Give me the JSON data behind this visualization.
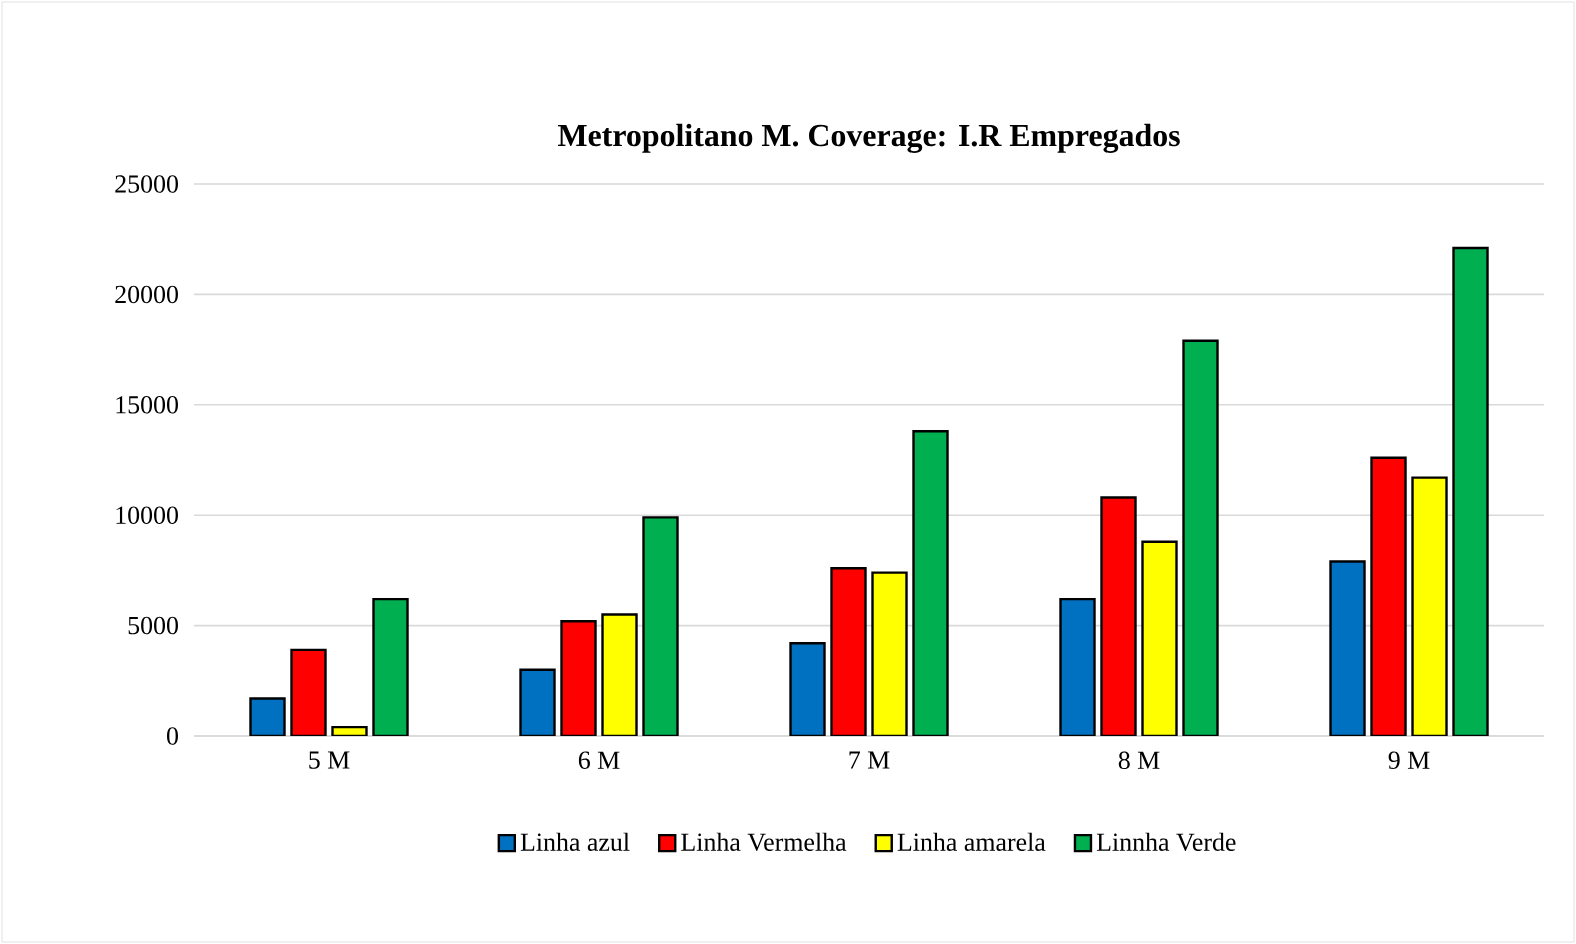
{
  "chart_data": {
    "type": "bar",
    "title": "Metropolitano M. Coverage: I.R Empregados",
    "categories": [
      "5 M",
      "6 M",
      "7 M",
      "8 M",
      "9 M"
    ],
    "series": [
      {
        "name": "Linha azul",
        "color": "#0070c0",
        "values": [
          1700,
          3000,
          4200,
          6200,
          7900
        ]
      },
      {
        "name": "Linha Vermelha",
        "color": "#ff0000",
        "values": [
          3900,
          5200,
          7600,
          10800,
          12600
        ]
      },
      {
        "name": "Linha amarela",
        "color": "#ffff00",
        "values": [
          400,
          5500,
          7400,
          8800,
          11700
        ]
      },
      {
        "name": "Linnha Verde",
        "color": "#00b050",
        "values": [
          6200,
          9900,
          13800,
          17900,
          22100
        ]
      }
    ],
    "ylim": [
      0,
      25000
    ],
    "yticks": [
      0,
      5000,
      10000,
      15000,
      20000,
      25000
    ],
    "grid": "y",
    "legend": "bottom"
  }
}
